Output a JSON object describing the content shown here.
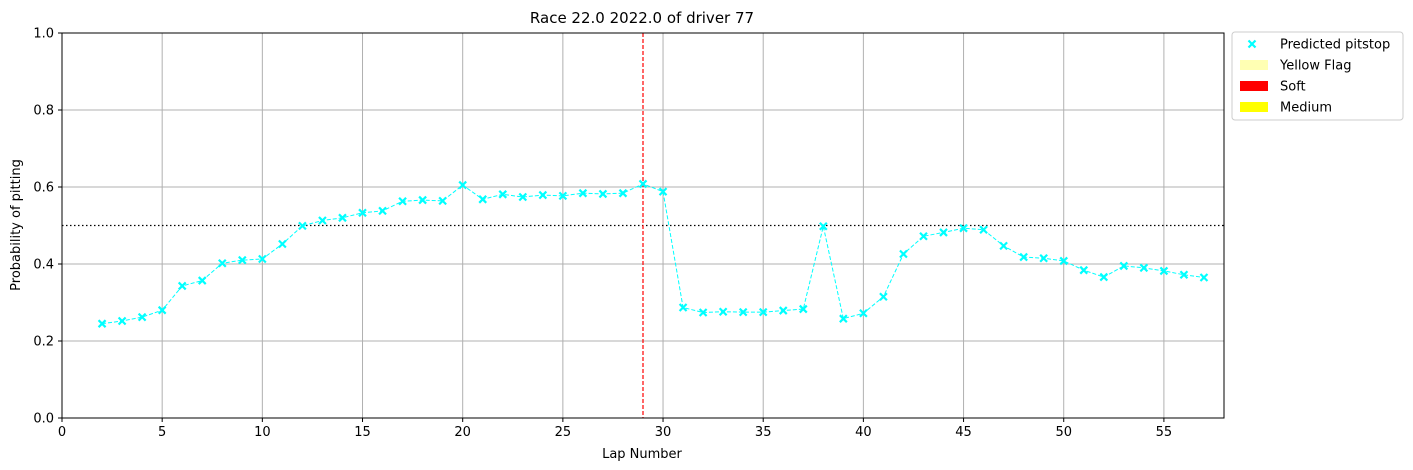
{
  "chart_data": {
    "type": "scatter",
    "title": "Race 22.0 2022.0 of driver 77",
    "xlabel": "Lap Number",
    "ylabel": "Probability of pitting",
    "xlim": [
      0,
      58
    ],
    "ylim": [
      0,
      1
    ],
    "xticks": [
      0,
      5,
      10,
      15,
      20,
      25,
      30,
      35,
      40,
      45,
      50,
      55
    ],
    "yticks": [
      0.0,
      0.2,
      0.4,
      0.6,
      0.8,
      1.0
    ],
    "xtick_labels": [
      "0",
      "5",
      "10",
      "15",
      "20",
      "25",
      "30",
      "35",
      "40",
      "45",
      "50",
      "55"
    ],
    "ytick_labels": [
      "0.0",
      "0.2",
      "0.4",
      "0.6",
      "0.8",
      "1.0"
    ],
    "grid": true,
    "threshold": 0.5,
    "pitstop_lap": 29,
    "series": [
      {
        "name": "Predicted pitstop",
        "color": "#00ffff",
        "marker": "x",
        "line": "dashed",
        "x": [
          2,
          3,
          4,
          5,
          6,
          7,
          8,
          9,
          10,
          11,
          12,
          13,
          14,
          15,
          16,
          17,
          18,
          19,
          20,
          21,
          22,
          23,
          24,
          25,
          26,
          27,
          28,
          29,
          30,
          31,
          32,
          33,
          34,
          35,
          36,
          37,
          38,
          39,
          40,
          41,
          42,
          43,
          44,
          45,
          46,
          47,
          48,
          49,
          50,
          51,
          52,
          53,
          54,
          55,
          56,
          57
        ],
        "y": [
          0.245,
          0.252,
          0.262,
          0.28,
          0.343,
          0.357,
          0.402,
          0.41,
          0.413,
          0.452,
          0.499,
          0.513,
          0.52,
          0.533,
          0.538,
          0.563,
          0.566,
          0.564,
          0.605,
          0.568,
          0.581,
          0.574,
          0.579,
          0.577,
          0.584,
          0.582,
          0.584,
          0.608,
          0.588,
          0.287,
          0.274,
          0.276,
          0.275,
          0.275,
          0.279,
          0.283,
          0.498,
          0.258,
          0.272,
          0.315,
          0.426,
          0.472,
          0.482,
          0.493,
          0.489,
          0.447,
          0.418,
          0.415,
          0.408,
          0.384,
          0.366,
          0.395,
          0.39,
          0.382,
          0.372,
          0.365
        ]
      }
    ],
    "legend": {
      "placement": "outside-top-right",
      "entries": [
        {
          "label": "Predicted pitstop",
          "type": "marker",
          "color": "#00ffff"
        },
        {
          "label": "Yellow Flag",
          "type": "patch",
          "color": "#ffffb3"
        },
        {
          "label": "Soft",
          "type": "patch",
          "color": "#ff0000"
        },
        {
          "label": "Medium",
          "type": "patch",
          "color": "#ffff00"
        }
      ]
    }
  }
}
